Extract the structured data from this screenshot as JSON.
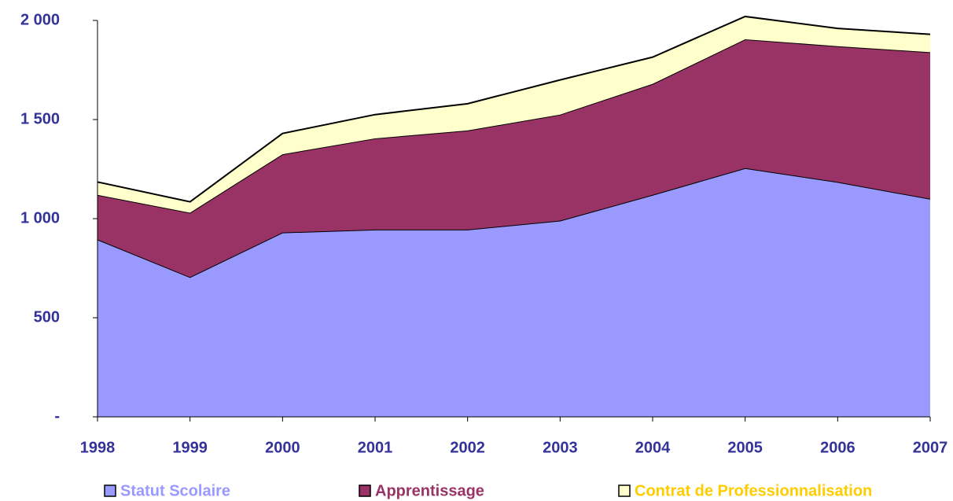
{
  "chart_data": {
    "type": "stacked_area",
    "categories": [
      "1998",
      "1999",
      "2000",
      "2001",
      "2002",
      "2003",
      "2004",
      "2005",
      "2006",
      "2007"
    ],
    "series": [
      {
        "name": "Statut Scolaire",
        "color": "#9999ff",
        "legend_text_color": "#9999ff",
        "values": [
          895,
          705,
          930,
          945,
          945,
          990,
          1120,
          1255,
          1185,
          1100
        ]
      },
      {
        "name": "Apprentissage",
        "color": "#993366",
        "legend_text_color": "#993366",
        "values": [
          225,
          325,
          395,
          460,
          500,
          535,
          560,
          650,
          685,
          740
        ]
      },
      {
        "name": "Contrat de Professionnalisation",
        "color": "#ffffcc",
        "legend_text_color": "#ffcc00",
        "values": [
          65,
          55,
          105,
          120,
          135,
          175,
          135,
          115,
          90,
          90
        ]
      }
    ],
    "ylim": [
      0,
      2000
    ],
    "yticks": [
      {
        "value": 0,
        "label": "-"
      },
      500,
      {
        "value": 1000,
        "label": "1 000"
      },
      {
        "value": 1500,
        "label": "1 500"
      },
      {
        "value": 2000,
        "label": "2 000"
      }
    ],
    "axis_label_color": "#333399",
    "legend": "bottom"
  }
}
